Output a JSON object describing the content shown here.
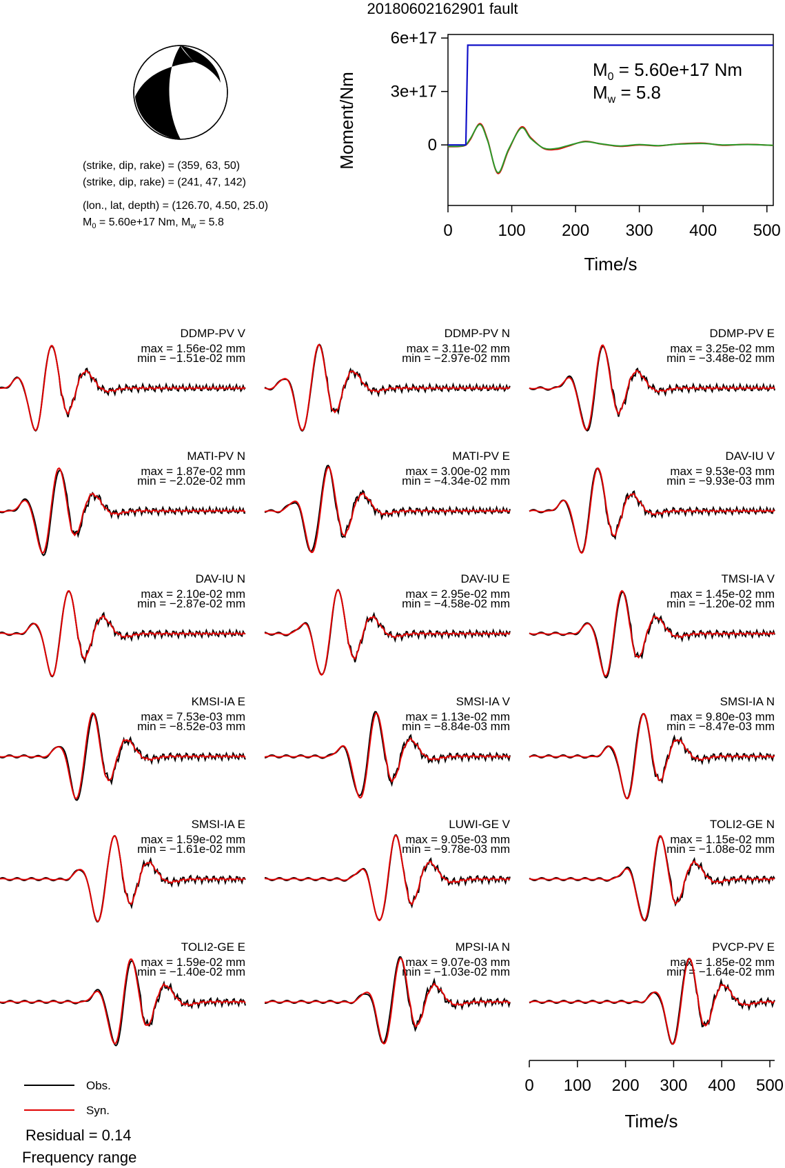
{
  "page_title": "20180602162901 fault",
  "focal": {
    "line1": "(strike, dip, rake) = (359, 63, 50)",
    "line2": "(strike, dip, rake) = (241, 47, 142)",
    "line3": "(lon., lat, depth) = (126.70, 4.50, 25.0)",
    "line4_m0": "M",
    "line4_sub0": "0",
    "line4_mid": " = 5.60e+17 Nm, M",
    "line4_subw": "w",
    "line4_end": " = 5.8"
  },
  "moment_plot": {
    "m0_label": "M",
    "m0_sub": "0",
    "m0_value": " = 5.60e+17 Nm",
    "mw_label": "M",
    "mw_sub": "w",
    "mw_value": " = 5.8",
    "ylabel": "Moment/Nm",
    "xlabel": "Time/s"
  },
  "legend": {
    "obs": "Obs.",
    "syn": "Syn.",
    "residual": "Residual = 0.14",
    "freq": "Frequency range"
  },
  "waveform_xlabel": "Time/s",
  "colors": {
    "observed": "#000000",
    "synthetic": "#e00000",
    "moment_cumulative": "#1010c8",
    "moment_rate_green": "#2a9a2a"
  },
  "chart_data": [
    {
      "type": "line",
      "title": "20180602162901 fault",
      "xlabel": "Time/s",
      "ylabel": "Moment/Nm",
      "xlim": [
        0,
        510
      ],
      "ylim": [
        -3.4e+17,
        6.2e+17
      ],
      "xticks": [
        0,
        100,
        200,
        300,
        400,
        500
      ],
      "yticks": [
        0,
        3e+17,
        6e+17
      ],
      "ytick_labels": [
        "0",
        "3e+17",
        "6e+17"
      ],
      "series": [
        {
          "name": "cumulative moment",
          "color": "#1010c8",
          "x": [
            0,
            28,
            31,
            33,
            510
          ],
          "y": [
            0,
            0,
            5.6e+17,
            5.6e+17,
            5.6e+17
          ]
        },
        {
          "name": "moment rate (red)",
          "color": "#e00000",
          "x": [
            0,
            25,
            35,
            50,
            62,
            78,
            95,
            115,
            130,
            150,
            170,
            190,
            215,
            240,
            270,
            300,
            330,
            360,
            400,
            430,
            470,
            510
          ],
          "y": [
            -1e+16,
            -5000000000000000.0,
            3e+16,
            1.2e+17,
            3e+16,
            -1.6e+17,
            -3e+16,
            1e+17,
            4e+16,
            -2e+16,
            -2.5e+16,
            -5000000000000000.0,
            2e+16,
            5000000000000000.0,
            -8000000000000000.0,
            0.0,
            -5000000000000000.0,
            5000000000000000.0,
            1e+16,
            -2000000000000000.0,
            3000000000000000.0,
            -3000000000000000.0
          ]
        },
        {
          "name": "moment rate (green)",
          "color": "#2a9a2a",
          "x": [
            0,
            25,
            35,
            50,
            62,
            78,
            95,
            115,
            130,
            150,
            170,
            190,
            215,
            240,
            270,
            300,
            330,
            360,
            400,
            430,
            470,
            510
          ],
          "y": [
            -8000000000000000.0,
            -4000000000000000.0,
            3.5e+16,
            1.15e+17,
            2.5e+16,
            -1.55e+17,
            -2.5e+16,
            9.5e+16,
            3.5e+16,
            -1.8e+16,
            -2e+16,
            -2000000000000000.0,
            1.8e+16,
            6000000000000000.0,
            -6000000000000000.0,
            2000000000000000.0,
            -4000000000000000.0,
            4000000000000000.0,
            8000000000000000.0,
            0.0,
            2000000000000000.0,
            -2000000000000000.0
          ]
        }
      ]
    },
    {
      "type": "line",
      "xlabel": "Time/s",
      "xlim": [
        0,
        510
      ],
      "xticks": [
        0,
        100,
        200,
        300,
        400,
        500
      ],
      "panels": [
        {
          "station": "DDMP-PV V",
          "max": "max = 1.56e-02 mm",
          "min": "min = −1.51e-02 mm",
          "arrival": 95,
          "seed": 1
        },
        {
          "station": "DDMP-PV N",
          "max": "max = 3.11e-02 mm",
          "min": "min = −2.97e-02 mm",
          "arrival": 100,
          "seed": 2
        },
        {
          "station": "DDMP-PV E",
          "max": "max = 3.25e-02 mm",
          "min": "min = −3.48e-02 mm",
          "arrival": 140,
          "seed": 3
        },
        {
          "station": "MATI-PV N",
          "max": "max = 1.87e-02 mm",
          "min": "min = −2.02e-02 mm",
          "arrival": 110,
          "seed": 4
        },
        {
          "station": "MATI-PV E",
          "max": "max = 3.00e-02 mm",
          "min": "min = −4.34e-02 mm",
          "arrival": 120,
          "seed": 5
        },
        {
          "station": "DAV-IU V",
          "max": "max = 9.53e-03 mm",
          "min": "min = −9.93e-03 mm",
          "arrival": 130,
          "seed": 6
        },
        {
          "station": "DAV-IU N",
          "max": "max = 2.10e-02 mm",
          "min": "min = −2.87e-02 mm",
          "arrival": 130,
          "seed": 7
        },
        {
          "station": "DAV-IU E",
          "max": "max = 2.95e-02 mm",
          "min": "min = −4.58e-02 mm",
          "arrival": 140,
          "seed": 8
        },
        {
          "station": "TMSI-IA V",
          "max": "max = 1.45e-02 mm",
          "min": "min = −1.20e-02 mm",
          "arrival": 180,
          "seed": 9
        },
        {
          "station": "KMSI-IA E",
          "max": "max = 7.53e-03 mm",
          "min": "min = −8.52e-03 mm",
          "arrival": 180,
          "seed": 10
        },
        {
          "station": "SMSI-IA V",
          "max": "max = 1.13e-02 mm",
          "min": "min = −8.84e-03 mm",
          "arrival": 220,
          "seed": 11
        },
        {
          "station": "SMSI-IA N",
          "max": "max = 9.80e-03 mm",
          "min": "min = −8.47e-03 mm",
          "arrival": 225,
          "seed": 12
        },
        {
          "station": "SMSI-IA E",
          "max": "max = 1.59e-02 mm",
          "min": "min = −1.61e-02 mm",
          "arrival": 225,
          "seed": 13
        },
        {
          "station": "LUWI-GE V",
          "max": "max = 9.05e-03 mm",
          "min": "min = −9.78e-03 mm",
          "arrival": 260,
          "seed": 14
        },
        {
          "station": "TOLI2-GE N",
          "max": "max = 1.15e-02 mm",
          "min": "min = −1.08e-02 mm",
          "arrival": 260,
          "seed": 15
        },
        {
          "station": "TOLI2-GE E",
          "max": "max = 1.59e-02 mm",
          "min": "min = −1.40e-02 mm",
          "arrival": 260,
          "seed": 16
        },
        {
          "station": "MPSI-IA N",
          "max": "max = 9.07e-03 mm",
          "min": "min = −1.03e-02 mm",
          "arrival": 270,
          "seed": 17
        },
        {
          "station": "PVCP-PV E",
          "max": "max = 1.85e-02 mm",
          "min": "min = −1.64e-02 mm",
          "arrival": 320,
          "seed": 18
        }
      ]
    }
  ]
}
